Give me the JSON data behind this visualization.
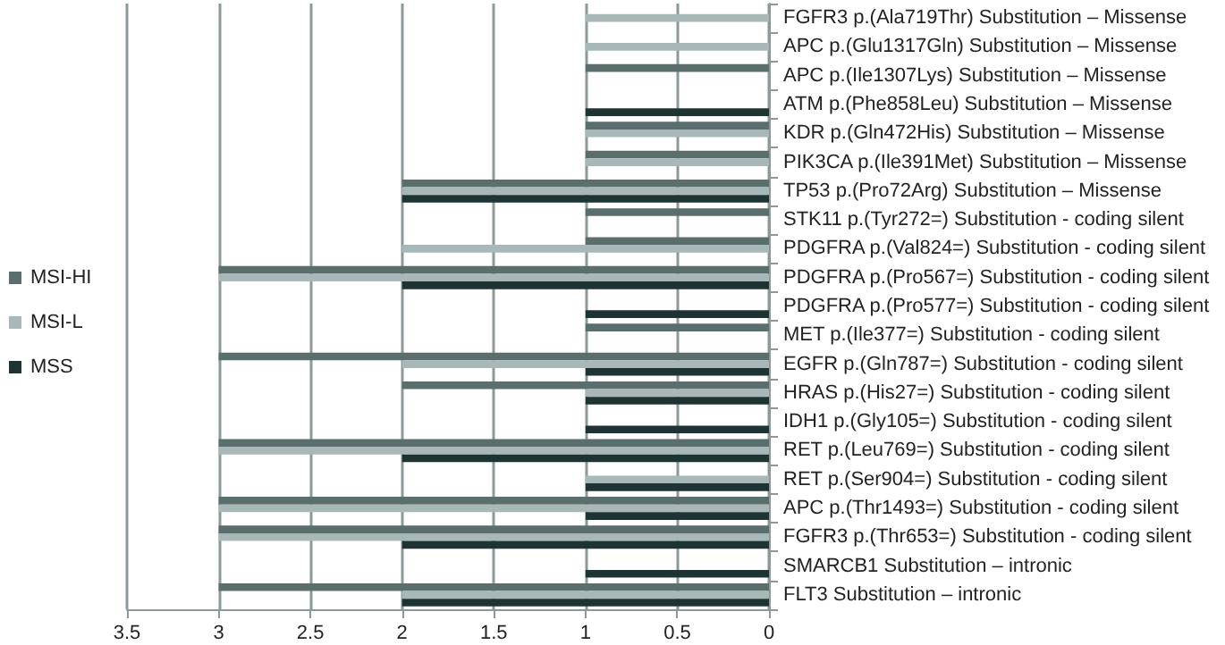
{
  "chart_data": {
    "type": "bar",
    "orientation": "horizontal",
    "categories": [
      "FGFR3 p.(Ala719Thr) Substitution – Missense",
      "APC p.(Glu1317Gln) Substitution – Missense",
      "APC p.(Ile1307Lys) Substitution – Missense",
      "ATM p.(Phe858Leu) Substitution – Missense",
      "KDR p.(Gln472His) Substitution – Missense",
      "PIK3CA p.(Ile391Met) Substitution – Missense",
      "TP53 p.(Pro72Arg) Substitution – Missense",
      "STK11 p.(Tyr272=) Substitution - coding silent",
      "PDGFRA p.(Val824=) Substitution - coding silent",
      "PDGFRA p.(Pro567=) Substitution - coding silent",
      "PDGFRA p.(Pro577=) Substitution - coding silent",
      "MET p.(Ile377=) Substitution - coding silent",
      "EGFR p.(Gln787=) Substitution - coding silent",
      "HRAS p.(His27=) Substitution - coding silent",
      "IDH1 p.(Gly105=) Substitution - coding silent",
      "RET p.(Leu769=) Substitution - coding silent",
      "RET p.(Ser904=) Substitution - coding silent",
      "APC p.(Thr1493=) Substitution - coding silent",
      "FGFR3 p.(Thr653=) Substitution - coding silent",
      "SMARCB1 Substitution – intronic",
      "FLT3 Substitution – intronic"
    ],
    "series": [
      {
        "name": "MSI-HI",
        "color": "#5b6e6e",
        "values": [
          null,
          null,
          1,
          null,
          1,
          1,
          2,
          1,
          1,
          3,
          null,
          1,
          3,
          2,
          null,
          3,
          null,
          3,
          3,
          null,
          3
        ]
      },
      {
        "name": "MSI-L",
        "color": "#a8b8b8",
        "values": [
          1,
          1,
          null,
          null,
          1,
          1,
          2,
          null,
          2,
          3,
          null,
          null,
          2,
          1,
          null,
          3,
          1,
          3,
          3,
          null,
          2
        ]
      },
      {
        "name": "MSS",
        "color": "#1e3434",
        "values": [
          null,
          null,
          null,
          1,
          null,
          null,
          2,
          null,
          null,
          2,
          1,
          null,
          1,
          1,
          1,
          2,
          1,
          1,
          2,
          1,
          2
        ]
      }
    ],
    "xlim": [
      3.5,
      0
    ],
    "xticks": [
      0,
      0.5,
      1,
      1.5,
      2,
      2.5,
      3,
      3.5
    ],
    "grid": "x",
    "legend": "left"
  }
}
